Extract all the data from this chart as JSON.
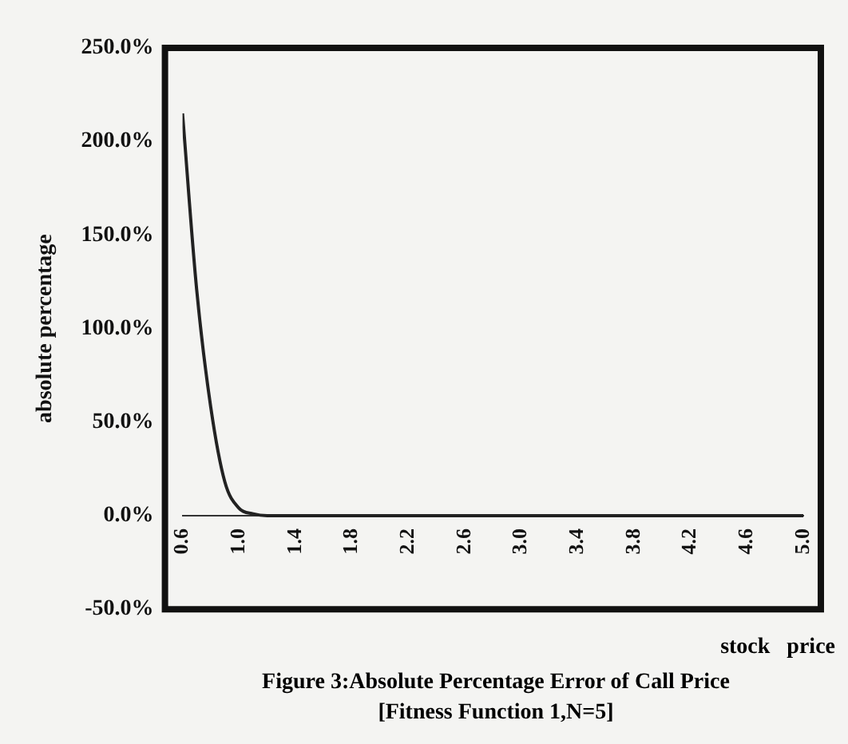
{
  "chart_data": {
    "type": "line",
    "title": "Figure 3:Absolute Percentage Error of Call Price",
    "subtitle": "[Fitness Function 1,N=5]",
    "xlabel": "stock   price",
    "ylabel": "absolute percentage",
    "x": [
      0.6,
      0.7,
      0.8,
      0.9,
      1.0,
      1.1,
      1.2,
      1.3,
      1.4,
      1.5,
      1.6,
      1.7,
      1.8,
      1.9,
      2.0,
      2.1,
      2.2,
      2.3,
      2.4,
      2.5,
      2.6,
      2.7,
      2.8,
      2.9,
      3.0,
      3.1,
      3.2,
      3.3,
      3.4,
      3.5,
      3.6,
      3.7,
      3.8,
      3.9,
      4.0,
      4.1,
      4.2,
      4.3,
      4.4,
      4.5,
      4.6,
      4.7,
      4.8,
      4.9,
      5.0
    ],
    "series": [
      {
        "color": "#222222",
        "values": [
          215,
          121,
          58,
          18,
          4,
          1,
          0,
          0,
          0,
          0,
          0,
          0,
          0,
          0,
          0,
          0,
          0,
          0,
          0,
          0,
          0,
          0,
          0,
          0,
          0,
          0,
          0,
          0,
          0,
          0,
          0,
          0,
          0,
          0,
          0,
          0,
          0,
          0,
          0,
          0,
          0,
          0,
          0,
          0,
          0
        ]
      }
    ],
    "xlim": [
      0.6,
      5.0
    ],
    "xticks": [
      {
        "value": 0.6,
        "label": "0.6"
      },
      {
        "value": 1.0,
        "label": "1.0"
      },
      {
        "value": 1.4,
        "label": "1.4"
      },
      {
        "value": 1.8,
        "label": "1.8"
      },
      {
        "value": 2.2,
        "label": "2.2"
      },
      {
        "value": 2.6,
        "label": "2.6"
      },
      {
        "value": 3.0,
        "label": "3.0"
      },
      {
        "value": 3.4,
        "label": "3.4"
      },
      {
        "value": 3.8,
        "label": "3.8"
      },
      {
        "value": 4.2,
        "label": "4.2"
      },
      {
        "value": 4.6,
        "label": "4.6"
      },
      {
        "value": 5.0,
        "label": "5.0"
      }
    ],
    "ylim": [
      -50,
      250
    ],
    "yticks": [
      {
        "value": -50,
        "label": "-50.0%"
      },
      {
        "value": 0,
        "label": "0.0%"
      },
      {
        "value": 50,
        "label": "50.0%"
      },
      {
        "value": 100,
        "label": "100.0%"
      },
      {
        "value": 150,
        "label": "150.0%"
      },
      {
        "value": 200,
        "label": "200.0%"
      },
      {
        "value": 250,
        "label": "250.0%"
      }
    ],
    "grid": false,
    "legend": false,
    "marker": "none",
    "line_style": "solid"
  }
}
